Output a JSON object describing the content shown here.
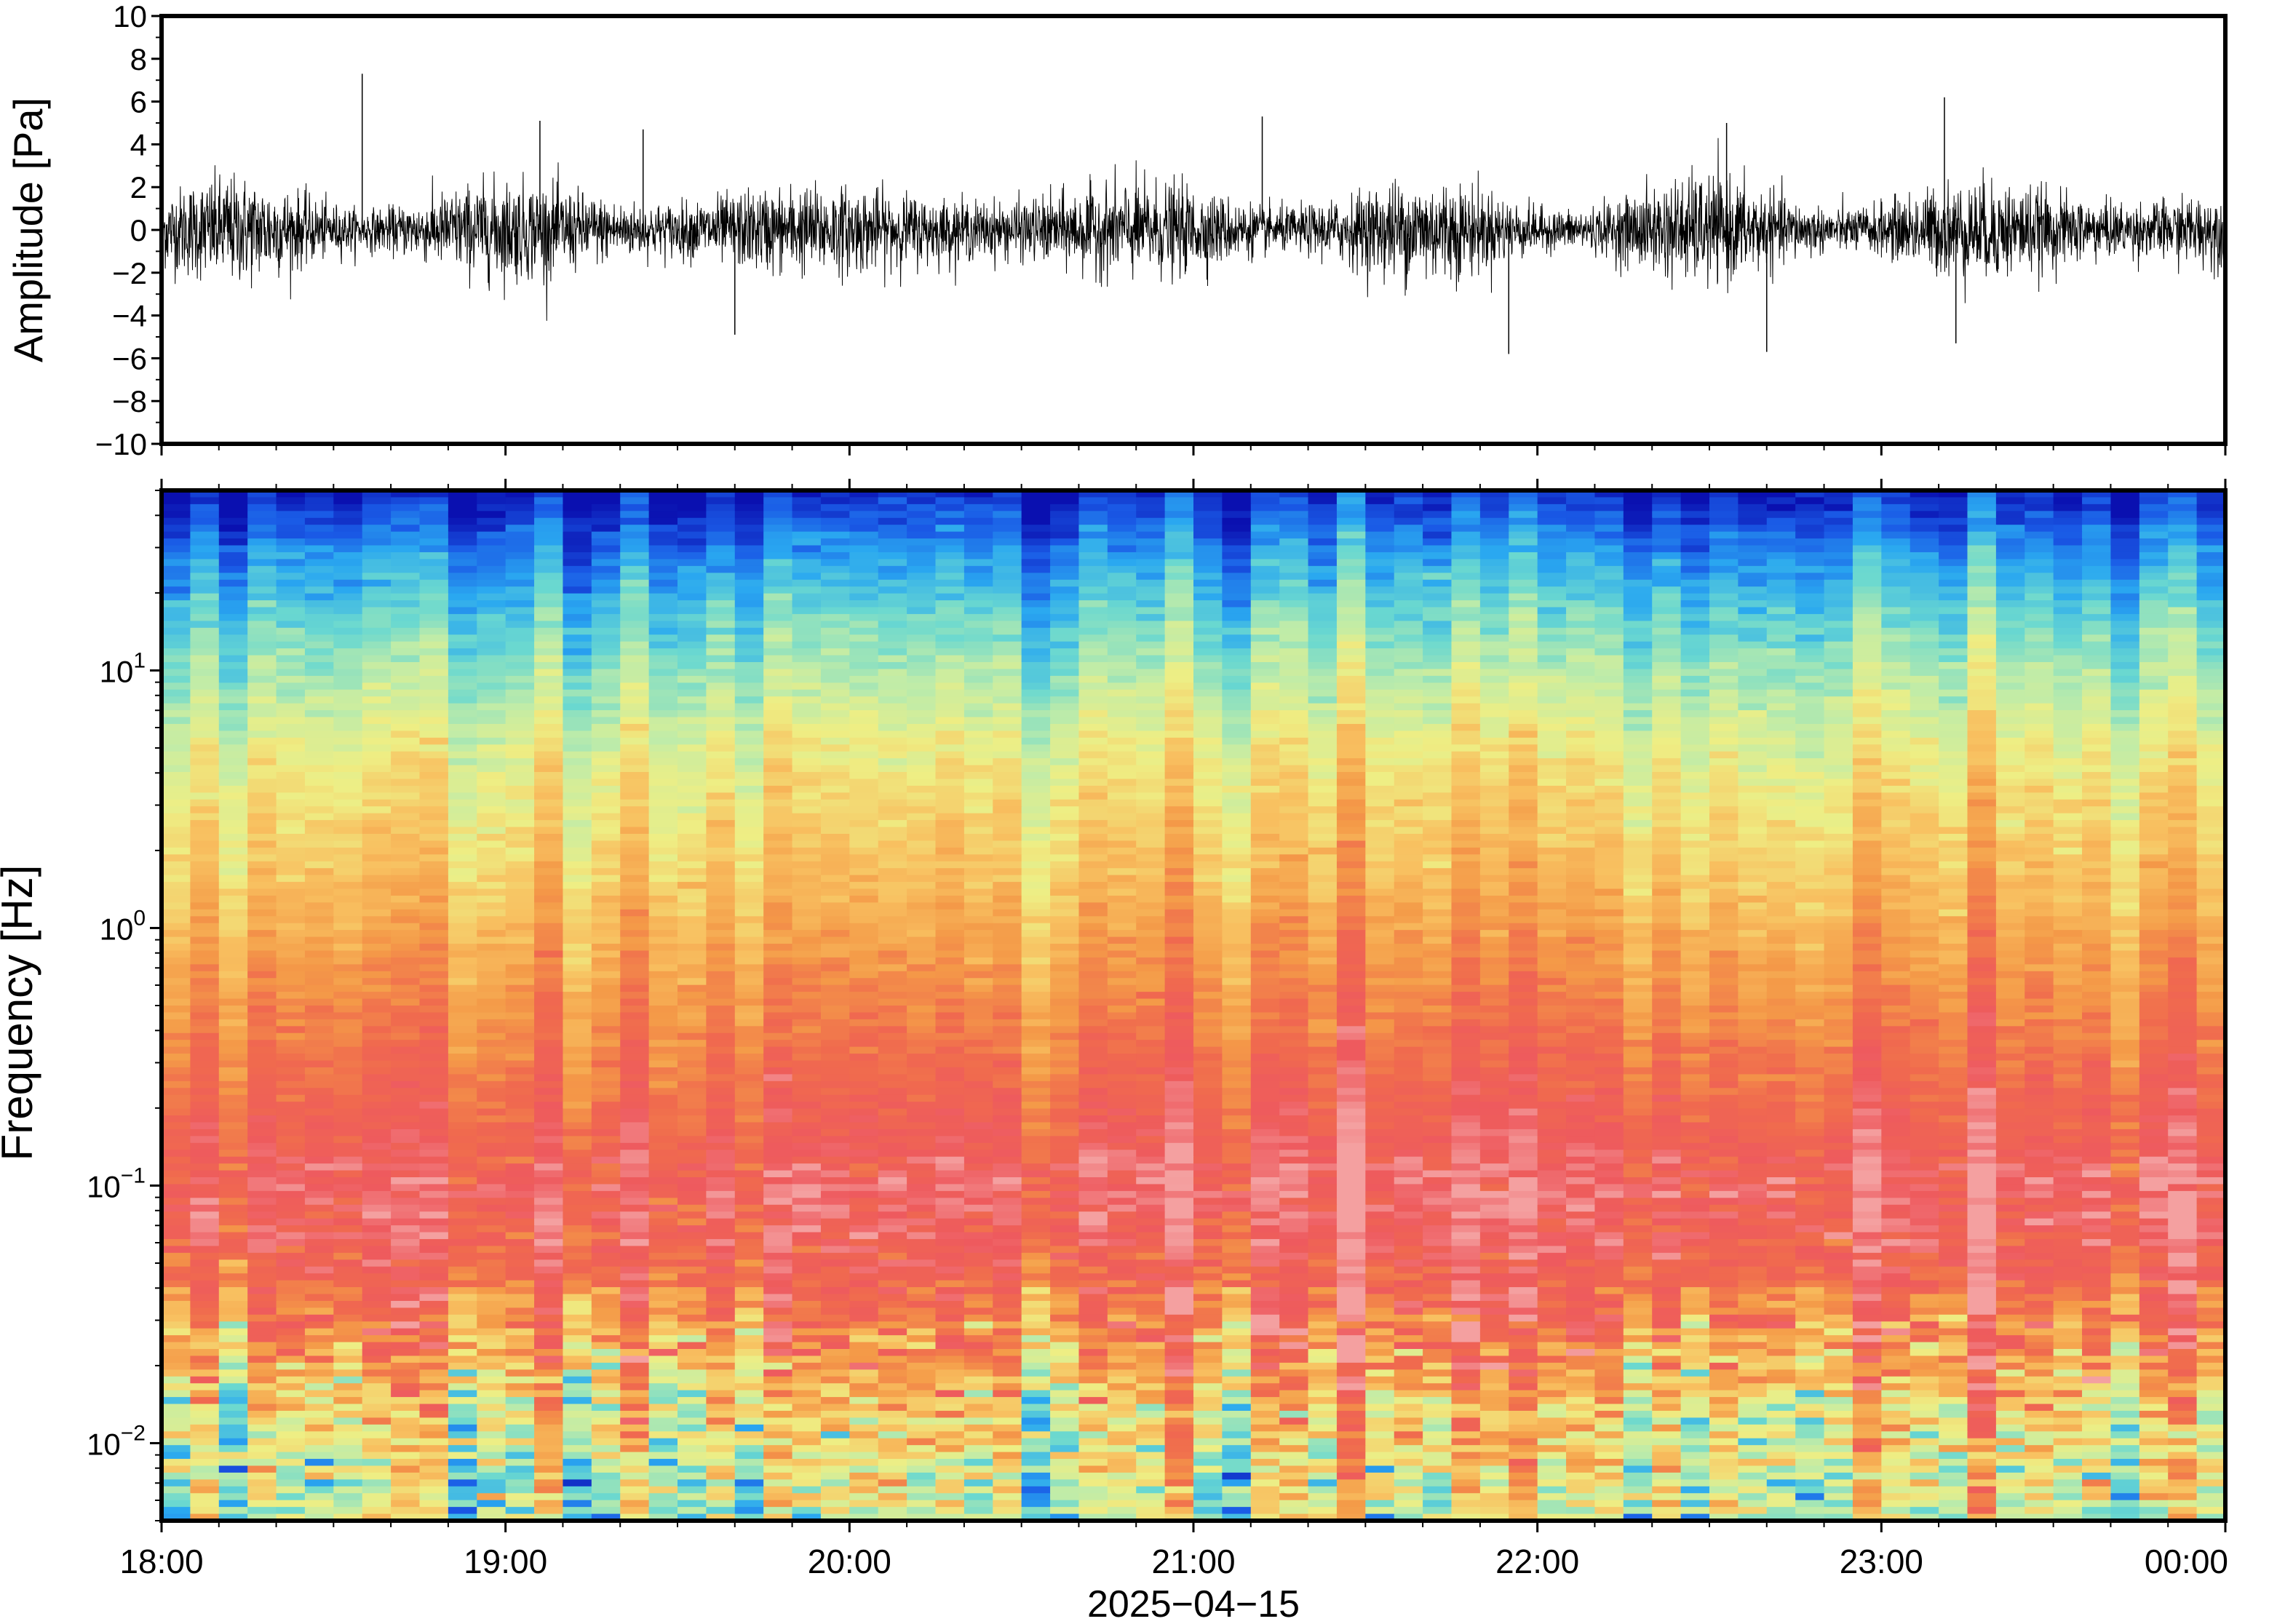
{
  "chart_data": [
    {
      "type": "line",
      "title": "",
      "xlabel": "",
      "ylabel": "Amplitude [Pa]",
      "xlim": [
        "18:00",
        "00:00"
      ],
      "ylim": [
        -10,
        10
      ],
      "y_ticks": [
        10,
        8,
        6,
        4,
        2,
        0,
        -2,
        -4,
        -6,
        -8,
        -10
      ],
      "y_tick_labels": [
        "10",
        "8",
        "6",
        "4",
        "2",
        "0",
        "−2",
        "−4",
        "−6",
        "−8",
        "−10"
      ],
      "grid": false,
      "series": [
        {
          "color": "#000000",
          "typical_range": [
            -2.5,
            2.5
          ],
          "notable_peaks": [
            {
              "t": "18:35",
              "value": 7.3
            },
            {
              "t": "19:06",
              "value": 5.1
            },
            {
              "t": "19:24",
              "value": 4.7
            },
            {
              "t": "21:12",
              "value": 5.3
            },
            {
              "t": "21:55",
              "value": -5.8
            },
            {
              "t": "22:33",
              "value": 5.0
            },
            {
              "t": "22:40",
              "value": -5.7
            },
            {
              "t": "23:11",
              "value": 6.2
            },
            {
              "t": "23:13",
              "value": -5.3
            },
            {
              "t": "19:40",
              "value": -4.9
            }
          ]
        }
      ]
    },
    {
      "type": "heatmap",
      "title": "",
      "xlabel": "2025−04−15",
      "ylabel": "Frequency [Hz]",
      "y_scale": "log",
      "ylim": [
        0.005,
        50
      ],
      "y_ticks": [
        {
          "value": 10,
          "base": "10",
          "exp": "1"
        },
        {
          "value": 1,
          "base": "10",
          "exp": "0"
        },
        {
          "value": 0.1,
          "base": "10",
          "exp": "−1"
        },
        {
          "value": 0.01,
          "base": "10",
          "exp": "−2"
        }
      ],
      "x_tick_labels": [
        "18:00",
        "19:00",
        "20:00",
        "21:00",
        "22:00",
        "23:00",
        "00:00"
      ],
      "colormap": {
        "name": "rainbow",
        "stops": [
          "#0a10b0",
          "#1a5ae6",
          "#2aa8f0",
          "#6ad8d0",
          "#c0eca8",
          "#eeee84",
          "#f8c060",
          "#f49a48",
          "#f06a4e",
          "#ee5a5e",
          "#f4a0a0"
        ]
      },
      "bands": [
        {
          "freq_range": [
            20,
            50
          ],
          "level": "low",
          "color": "#1a5ae6"
        },
        {
          "freq_range": [
            8,
            20
          ],
          "level": "medium-low",
          "color": "#6ad8d0"
        },
        {
          "freq_range": [
            1.5,
            8
          ],
          "level": "medium",
          "color": "#eeee84"
        },
        {
          "freq_range": [
            0.4,
            1.5
          ],
          "level": "medium-high",
          "color": "#f8c060"
        },
        {
          "freq_range": [
            0.05,
            0.4
          ],
          "level": "high",
          "color": "#ee5a5e"
        },
        {
          "freq_range": [
            0.02,
            0.05
          ],
          "level": "high",
          "color": "#f06a4e"
        },
        {
          "freq_range": [
            0.005,
            0.02
          ],
          "level": "medium",
          "color": "#f8c060"
        }
      ]
    }
  ]
}
